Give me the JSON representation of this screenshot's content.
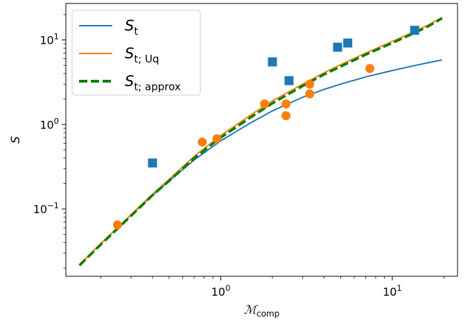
{
  "chart_data": {
    "type": "line",
    "title": "",
    "xlabel": "ℳ",
    "xlabel_sub": "comp",
    "ylabel": "S",
    "xscale": "log",
    "yscale": "log",
    "xlim": [
      0.125,
      24
    ],
    "ylim": [
      0.016,
      27
    ],
    "x_ticks": [
      {
        "value": 1,
        "base": "10",
        "exp": "0"
      },
      {
        "value": 10,
        "base": "10",
        "exp": "1"
      }
    ],
    "y_ticks": [
      {
        "value": 0.1,
        "base": "10",
        "exp": "−1"
      },
      {
        "value": 1,
        "base": "10",
        "exp": "0"
      },
      {
        "value": 10,
        "base": "10",
        "exp": "1"
      }
    ],
    "grid": false,
    "legend_position": "top-left",
    "series": [
      {
        "name": "S",
        "sub": "t",
        "kind": "line",
        "color": "#1f77b4",
        "dash": "",
        "x": [
          0.15,
          0.2,
          0.3,
          0.4,
          0.5,
          0.7,
          1,
          1.5,
          2,
          3,
          4,
          5,
          7,
          10,
          13,
          16,
          19.5
        ],
        "y": [
          0.022,
          0.039,
          0.085,
          0.145,
          0.215,
          0.38,
          0.64,
          1.05,
          1.45,
          2.1,
          2.6,
          3.0,
          3.65,
          4.35,
          4.9,
          5.35,
          5.8
        ]
      },
      {
        "name": "S",
        "sub": "t; Uq",
        "kind": "line",
        "color": "#ff7f0e",
        "dash": "",
        "x": [
          0.15,
          0.2,
          0.3,
          0.4,
          0.5,
          0.7,
          1,
          1.5,
          2,
          3,
          4,
          5,
          7,
          10,
          13,
          16,
          19.5
        ],
        "y": [
          0.022,
          0.039,
          0.086,
          0.15,
          0.225,
          0.42,
          0.74,
          1.3,
          1.9,
          3.0,
          4.1,
          5.1,
          7.0,
          9.6,
          12.2,
          14.8,
          18.5
        ]
      },
      {
        "name": "S",
        "sub": "t; approx",
        "kind": "line",
        "color": "#008000",
        "dash": "12,5",
        "x": [
          0.15,
          0.2,
          0.3,
          0.4,
          0.5,
          0.7,
          1,
          1.5,
          2,
          3,
          4,
          5,
          7,
          10,
          13,
          16,
          19.5
        ],
        "y": [
          0.0215,
          0.038,
          0.083,
          0.145,
          0.215,
          0.4,
          0.7,
          1.22,
          1.78,
          2.85,
          3.9,
          4.85,
          6.7,
          9.2,
          11.7,
          14.3,
          18.0
        ]
      },
      {
        "name": "",
        "kind": "square",
        "color": "#1f77b4",
        "x": [
          0.4,
          2.0,
          2.5,
          4.8,
          5.5,
          13.5
        ],
        "y": [
          0.35,
          5.5,
          3.3,
          8.2,
          9.2,
          13.0
        ]
      },
      {
        "name": "",
        "kind": "circle",
        "color": "#ff7f0e",
        "x": [
          0.25,
          0.78,
          0.95,
          1.8,
          2.4,
          2.4,
          3.3,
          3.3,
          7.4
        ],
        "y": [
          0.065,
          0.62,
          0.68,
          1.75,
          1.75,
          1.27,
          3.0,
          2.3,
          4.6
        ]
      }
    ]
  }
}
